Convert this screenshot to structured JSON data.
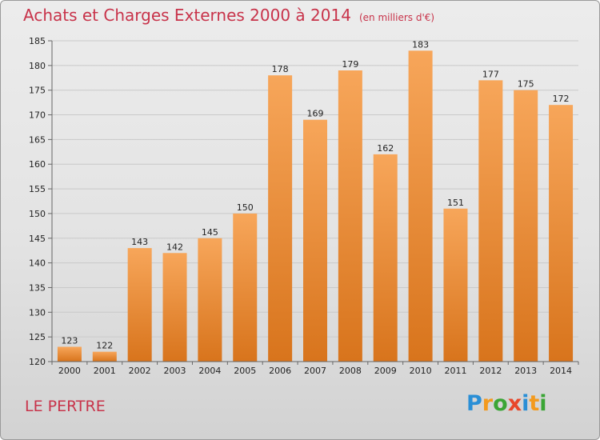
{
  "title": "Achats et Charges Externes 2000 à 2014",
  "subtitle": "(en milliers d'€)",
  "location": "LE PERTRE",
  "logo": {
    "letters": [
      "P",
      "r",
      "o",
      "x",
      "i",
      "t",
      "i"
    ],
    "colors": [
      "#2a8fd6",
      "#f39a1e",
      "#3aa535",
      "#e8462a",
      "#2a8fd6",
      "#f39a1e",
      "#3aa535"
    ]
  },
  "colors": {
    "title": "#c8334a",
    "bar_top": "#f7a65a",
    "bar_bottom": "#d8741c",
    "grid": "#c9c9c9"
  },
  "chart_data": {
    "type": "bar",
    "title": "Achats et Charges Externes 2000 à 2014",
    "subtitle": "(en milliers d'€)",
    "categories": [
      "2000",
      "2001",
      "2002",
      "2003",
      "2004",
      "2005",
      "2006",
      "2007",
      "2008",
      "2009",
      "2010",
      "2011",
      "2012",
      "2013",
      "2014"
    ],
    "values": [
      123,
      122,
      143,
      142,
      145,
      150,
      178,
      169,
      179,
      162,
      183,
      151,
      177,
      175,
      172
    ],
    "ylim": [
      120,
      185
    ],
    "yticks": [
      120,
      125,
      130,
      135,
      140,
      145,
      150,
      155,
      160,
      165,
      170,
      175,
      180,
      185
    ],
    "xlabel": "",
    "ylabel": "",
    "grid": true,
    "legend": "none"
  }
}
